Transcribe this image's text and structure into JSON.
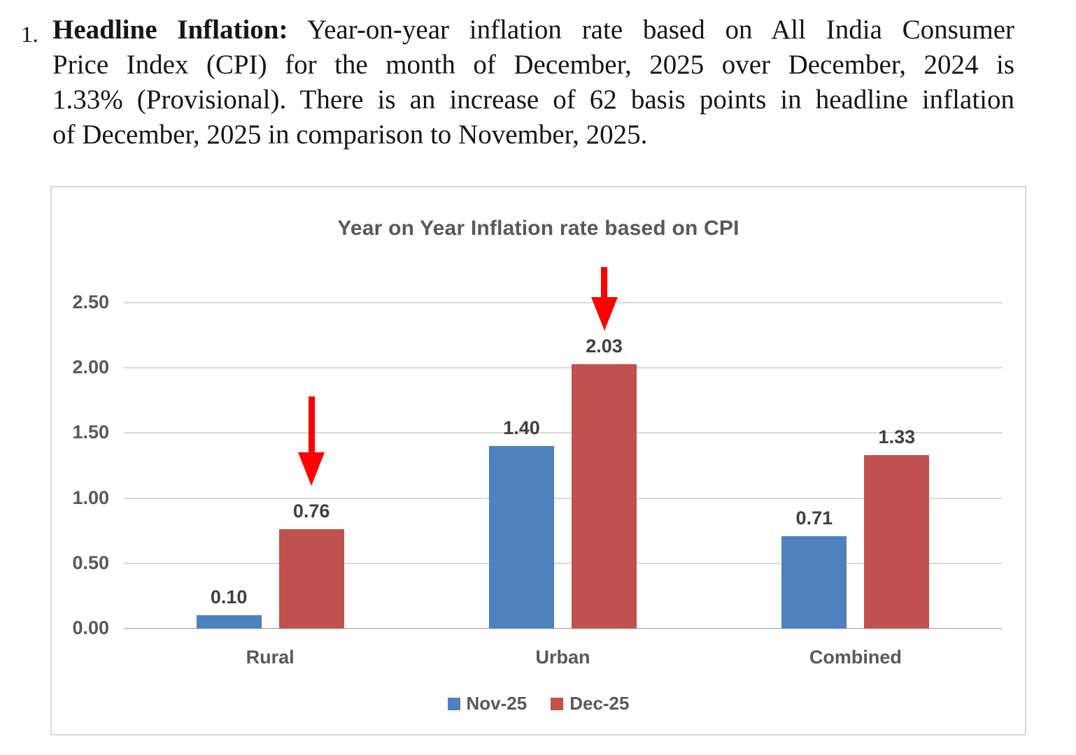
{
  "intro": {
    "number": "1.",
    "bold_lead": "Headline Inflation:",
    "line1_rest": " Year-on-year inflation rate based on All India Consumer",
    "line2": "Price Index (CPI) for the month of December, 2025 over December, 2024 is",
    "line3": "1.33% (Provisional). There is an increase of 62 basis points in headline inflation",
    "line4": "of December, 2025 in comparison to November, 2025."
  },
  "chart_data": {
    "type": "bar",
    "title": "Year on Year Inflation rate based on CPI",
    "categories": [
      "Rural",
      "Urban",
      "Combined"
    ],
    "series": [
      {
        "name": "Nov-25",
        "color": "#4E81BD",
        "values": [
          0.1,
          1.4,
          0.71
        ],
        "labels": [
          "0.10",
          "1.40",
          "0.71"
        ]
      },
      {
        "name": "Dec-25",
        "color": "#C0514E",
        "values": [
          0.76,
          2.03,
          1.33
        ],
        "labels": [
          "0.76",
          "2.03",
          "1.33"
        ]
      }
    ],
    "y_ticks": [
      "0.00",
      "0.50",
      "1.00",
      "1.50",
      "2.00",
      "2.50"
    ],
    "ylim": [
      0,
      2.5
    ],
    "grid": true,
    "legend_position": "bottom",
    "grid_color": "#D9D9D9",
    "baseline_color": "#C6C6C6",
    "axis_text_color": "#595959",
    "value_label_color": "#3F3F3F",
    "annotations": [
      {
        "type": "down-arrow",
        "color": "#FF0000",
        "category": "Rural",
        "series": "Dec-25"
      },
      {
        "type": "down-arrow",
        "color": "#FF0000",
        "category": "Urban",
        "series": "Dec-25"
      }
    ]
  }
}
